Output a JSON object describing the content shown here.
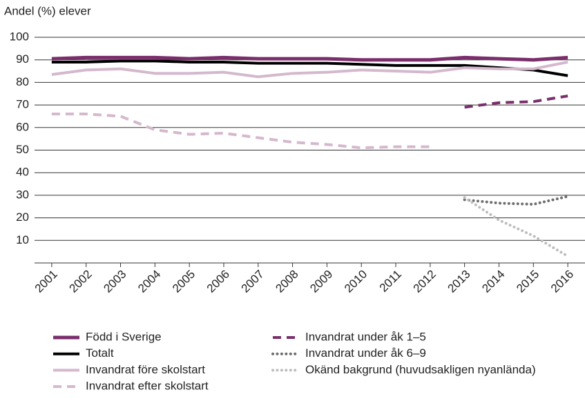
{
  "chart_data": {
    "type": "line",
    "y_label": "Andel (%) elever",
    "categories": [
      "2001",
      "2002",
      "2003",
      "2004",
      "2005",
      "2006",
      "2007",
      "2008",
      "2009",
      "2010",
      "2011",
      "2012",
      "2013",
      "2014",
      "2015",
      "2016"
    ],
    "ylim": [
      0,
      100
    ],
    "yticks": [
      10,
      20,
      30,
      40,
      50,
      60,
      70,
      80,
      90,
      100
    ],
    "grid": true,
    "series": [
      {
        "name": "Född i Sverige",
        "color": "#7a2e6c",
        "style": "solid",
        "width": 5,
        "values": [
          90.5,
          91,
          91,
          91,
          90.5,
          91,
          90.5,
          90.5,
          90.5,
          90,
          90,
          90,
          91,
          90.5,
          90,
          91
        ]
      },
      {
        "name": "Totalt",
        "color": "#000000",
        "style": "solid",
        "width": 4,
        "values": [
          89,
          89,
          89.5,
          89.5,
          89,
          89,
          88.5,
          88.5,
          88.5,
          88,
          87.5,
          87.5,
          87.5,
          86.5,
          85.5,
          83
        ]
      },
      {
        "name": "Invandrat före skolstart",
        "color": "#d4b8cd",
        "style": "solid",
        "width": 4,
        "values": [
          83.5,
          85.5,
          86,
          84,
          84,
          84.5,
          82.5,
          84,
          84.5,
          85.5,
          85,
          84.5,
          86.5,
          86,
          86,
          89
        ]
      },
      {
        "name": "Invandrat efter skolstart",
        "color": "#d4b8cd",
        "style": "dashed",
        "width": 4,
        "values": [
          66,
          66,
          65,
          59,
          57,
          57.5,
          55.5,
          53.5,
          52.5,
          51,
          51.5,
          51.5,
          null,
          null,
          null,
          null
        ]
      },
      {
        "name": "Invandrat under åk 1–5",
        "color": "#7a2e6c",
        "style": "dashed",
        "width": 4,
        "values": [
          null,
          null,
          null,
          null,
          null,
          null,
          null,
          null,
          null,
          null,
          null,
          null,
          69,
          71,
          71.5,
          74
        ]
      },
      {
        "name": "Invandrat under åk 6–9",
        "color": "#6e6e6e",
        "style": "dotted",
        "width": 4,
        "values": [
          null,
          null,
          null,
          null,
          null,
          null,
          null,
          null,
          null,
          null,
          null,
          null,
          28,
          26.5,
          26,
          29.5
        ]
      },
      {
        "name": "Okänd bakgrund (huvudsakligen nyanlända)",
        "color": "#bdbdbd",
        "style": "dotted",
        "width": 4,
        "values": [
          null,
          null,
          null,
          null,
          null,
          null,
          null,
          null,
          null,
          null,
          null,
          null,
          29,
          19,
          12,
          3
        ]
      }
    ]
  }
}
